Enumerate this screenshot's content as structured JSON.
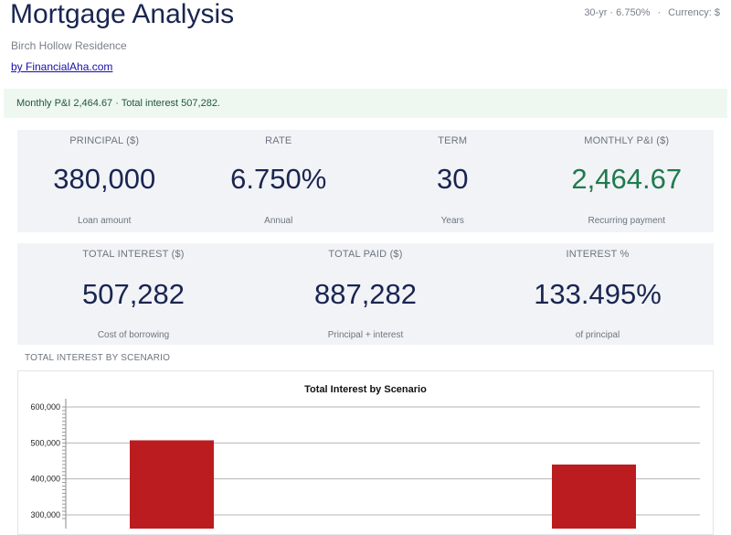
{
  "header": {
    "title": "Mortgage Analysis",
    "subtitle": "Birch Hollow Residence",
    "byline": "by FinancialAha.com",
    "meta_loan": "30-yr · 6.750%",
    "meta_separator": "·",
    "meta_currency": "Currency: $"
  },
  "banner": {
    "text": "Monthly P&I 2,464.67 · Total interest 507,282."
  },
  "kpis_row1": [
    {
      "label": "PRINCIPAL ($)",
      "value": "380,000",
      "sub": "Loan amount"
    },
    {
      "label": "RATE",
      "value": "6.750%",
      "sub": "Annual"
    },
    {
      "label": "TERM",
      "value": "30",
      "sub": "Years"
    },
    {
      "label": "MONTHLY P&I ($)",
      "value": "2,464.67",
      "sub": "Recurring payment"
    }
  ],
  "kpis_row2": [
    {
      "label": "TOTAL INTEREST ($)",
      "value": "507,282",
      "sub": "Cost of borrowing"
    },
    {
      "label": "TOTAL PAID ($)",
      "value": "887,282",
      "sub": "Principal + interest"
    },
    {
      "label": "INTEREST %",
      "value": "133.495%",
      "sub": "of principal"
    }
  ],
  "section": {
    "label": "TOTAL INTEREST BY SCENARIO"
  },
  "colors": {
    "accent_green": "#1f7a4d",
    "bar": "#bb1c1f",
    "title": "#1a2550"
  },
  "chart_data": {
    "type": "bar",
    "title": "Total Interest by Scenario",
    "xlabel": "",
    "ylabel": "",
    "categories": [
      "",
      ""
    ],
    "values": [
      507282,
      440000
    ],
    "ylim": [
      290000,
      600000
    ],
    "yticks": [
      300000,
      400000,
      500000,
      600000
    ],
    "ytick_labels": [
      "300,000",
      "400,000",
      "500,000",
      "600,000"
    ],
    "grid": true,
    "legend": "none"
  }
}
